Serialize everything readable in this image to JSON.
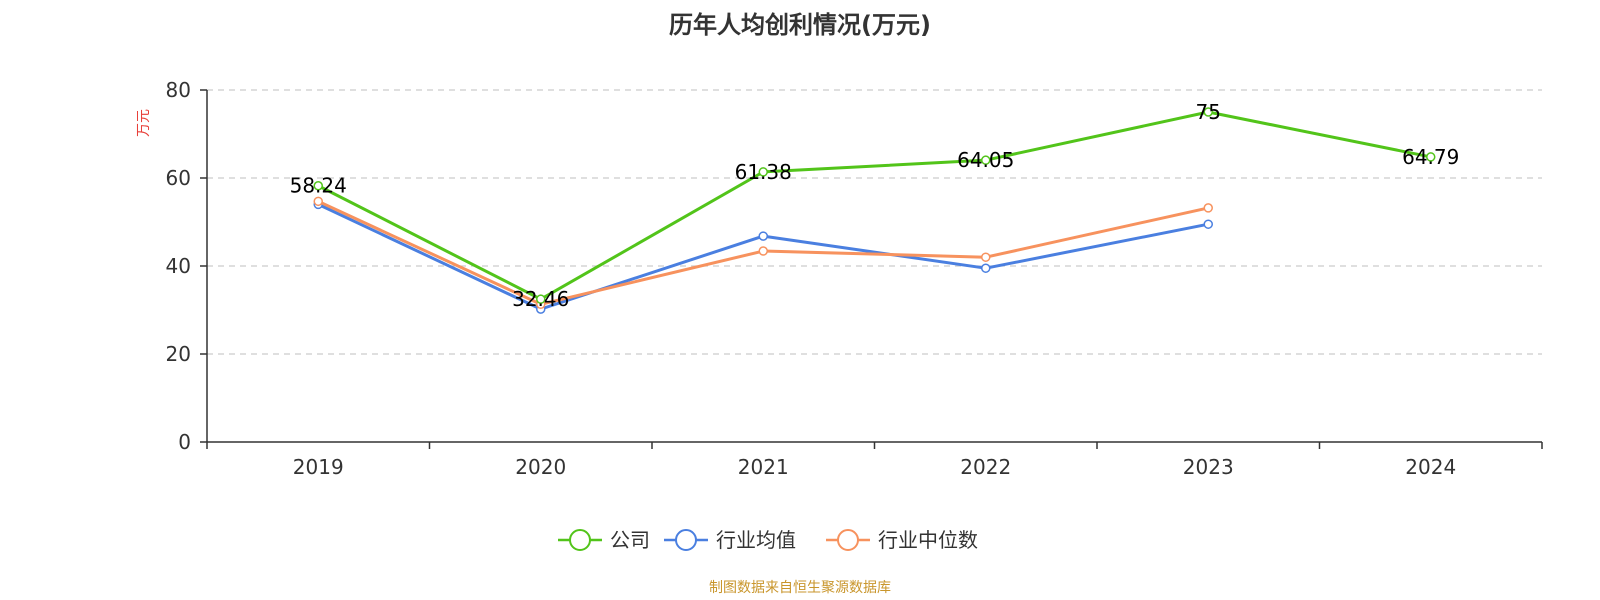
{
  "colors": {
    "company": "#52c41a",
    "industry_avg": "#4a7fe0",
    "industry_median": "#f7925e",
    "source": "#c9962c",
    "unit": "#e8403a"
  },
  "chart_data": {
    "type": "line",
    "title": "历年人均创利情况(万元)",
    "ylabel": "万元",
    "xlabel": "",
    "ylim": [
      0,
      80
    ],
    "yticks": [
      0,
      20,
      40,
      60,
      80
    ],
    "categories": [
      "2019",
      "2020",
      "2021",
      "2022",
      "2023",
      "2024"
    ],
    "grid": true,
    "legend_position": "bottom",
    "series": [
      {
        "key": "company",
        "name": "公司",
        "values": [
          58.24,
          32.46,
          61.38,
          64.05,
          75,
          64.79
        ],
        "data_labels": [
          "58.24",
          "32.46",
          "61.38",
          "64.05",
          "75",
          "64.79"
        ]
      },
      {
        "key": "industry_avg",
        "name": "行业均值",
        "values": [
          54.0,
          30.2,
          46.8,
          39.5,
          49.5,
          null
        ]
      },
      {
        "key": "industry_median",
        "name": "行业中位数",
        "values": [
          54.7,
          31.3,
          43.4,
          42.0,
          53.2,
          null
        ]
      }
    ]
  },
  "footer": {
    "source": "制图数据来自恒生聚源数据库"
  }
}
